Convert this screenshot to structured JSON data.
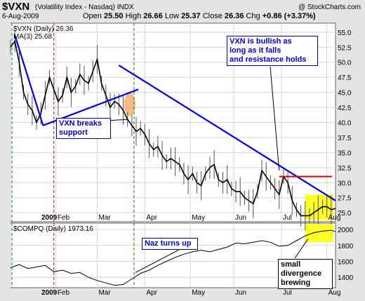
{
  "header": {
    "symbol": "$VXN",
    "subtitle": "(Volatility Index - Nasdaq) INDX",
    "brand": "@ StockCharts.com",
    "date": "6-Aug-2009",
    "open_label": "Open",
    "open": "25.50",
    "high_label": "High",
    "high": "26.66",
    "low_label": "Low",
    "low": "25.37",
    "close_label": "Close",
    "close": "26.36",
    "chg_label": "Chg",
    "chg": "+0.86 (+3.37%)"
  },
  "annotations": {
    "bullish": "VXN is bullish as\nlong as it falls\nand resistance holds",
    "breaks": "VXN breaks\nsupport",
    "naz": "Naz turns up",
    "divergence": "small\ndivergence\nbrewing"
  },
  "colors": {
    "price_line": "#000000",
    "trendline": "#0000dd",
    "resistance": "#dd0000",
    "highlight": "#ffff00",
    "orange_marker": "#f4a460",
    "vline_red": "#cc0000",
    "vline_green": "#008800"
  },
  "chart_data": [
    {
      "type": "line",
      "legend": [
        "$VXN (Daily) 26.36",
        "MA(3) 25.68"
      ],
      "ylim": [
        23.5,
        56.5
      ],
      "yticks": [
        25.0,
        27.5,
        30.0,
        32.5,
        35.0,
        37.5,
        40.0,
        42.5,
        45.0,
        47.5,
        50.0,
        52.5,
        55.0
      ],
      "x_ticks": [
        {
          "label": "2009",
          "day": 0,
          "bold": true
        },
        {
          "label": "Feb",
          "day": 21
        },
        {
          "label": "Mar",
          "day": 40
        },
        {
          "label": "Apr",
          "day": 62
        },
        {
          "label": "May",
          "day": 83
        },
        {
          "label": "Jun",
          "day": 103
        },
        {
          "label": "Jul",
          "day": 125
        },
        {
          "label": "Aug",
          "day": 146
        }
      ],
      "x_range": [
        0,
        150
      ],
      "series": [
        {
          "name": "MA(3)",
          "x": [
            0,
            2,
            4,
            6,
            8,
            10,
            12,
            14,
            16,
            18,
            20,
            22,
            24,
            26,
            28,
            30,
            32,
            34,
            36,
            38,
            40,
            42,
            44,
            46,
            48,
            50,
            52,
            54,
            56,
            58,
            60,
            62,
            64,
            66,
            68,
            70,
            72,
            74,
            76,
            78,
            80,
            82,
            84,
            86,
            88,
            90,
            92,
            94,
            96,
            98,
            100,
            102,
            104,
            106,
            108,
            110,
            112,
            114,
            116,
            118,
            120,
            122,
            124,
            126,
            128,
            130,
            132,
            134,
            136,
            138,
            140,
            142,
            144,
            146,
            148,
            150
          ],
          "values": [
            52.5,
            53.5,
            50.0,
            45.0,
            43.0,
            42.0,
            40.0,
            41.5,
            44.5,
            47.5,
            45.5,
            43.5,
            44.5,
            47.5,
            45.0,
            46.0,
            48.0,
            47.0,
            46.5,
            48.5,
            50.5,
            46.5,
            44.5,
            42.5,
            43.5,
            43.0,
            42.0,
            40.5,
            39.5,
            38.5,
            39.0,
            38.0,
            36.5,
            35.5,
            36.0,
            34.5,
            33.5,
            34.0,
            33.5,
            33.0,
            31.5,
            30.5,
            31.5,
            30.0,
            29.5,
            31.5,
            32.5,
            33.0,
            30.5,
            30.0,
            30.5,
            29.0,
            28.5,
            28.5,
            27.5,
            27.0,
            26.5,
            28.5,
            32.0,
            31.0,
            30.0,
            29.0,
            28.0,
            31.0,
            30.0,
            27.0,
            25.5,
            24.5,
            24.5,
            24.5,
            25.0,
            25.5,
            26.0,
            26.0,
            25.5,
            25.7
          ]
        }
      ],
      "trendlines": [
        {
          "from": [
            2,
            54.5
          ],
          "to": [
            15,
            39.5
          ]
        },
        {
          "from": [
            15,
            39.5
          ],
          "to": [
            59,
            45.5
          ]
        },
        {
          "from": [
            50,
            49.5
          ],
          "to": [
            150,
            27.0
          ]
        }
      ],
      "resistance": {
        "y": 31.0,
        "from_day": 124,
        "to_day": 150
      }
    },
    {
      "type": "line",
      "legend": [
        "$COMPQ (Daily) 1973.16"
      ],
      "ylim": [
        1270,
        2080
      ],
      "yticks": [
        1400,
        1600,
        1800,
        2000
      ],
      "series": [
        {
          "name": "$COMPQ",
          "x": [
            0,
            4,
            8,
            12,
            16,
            20,
            24,
            28,
            32,
            36,
            40,
            44,
            48,
            52,
            56,
            60,
            64,
            68,
            72,
            76,
            80,
            84,
            88,
            92,
            96,
            100,
            104,
            108,
            112,
            116,
            120,
            124,
            128,
            132,
            136,
            140,
            144,
            148,
            150
          ],
          "values": [
            1520,
            1560,
            1510,
            1530,
            1550,
            1470,
            1490,
            1450,
            1460,
            1400,
            1360,
            1330,
            1300,
            1310,
            1380,
            1450,
            1490,
            1550,
            1600,
            1650,
            1690,
            1720,
            1740,
            1720,
            1750,
            1780,
            1830,
            1820,
            1840,
            1860,
            1840,
            1790,
            1800,
            1860,
            1920,
            1960,
            1980,
            1990,
            1973
          ]
        }
      ]
    }
  ]
}
